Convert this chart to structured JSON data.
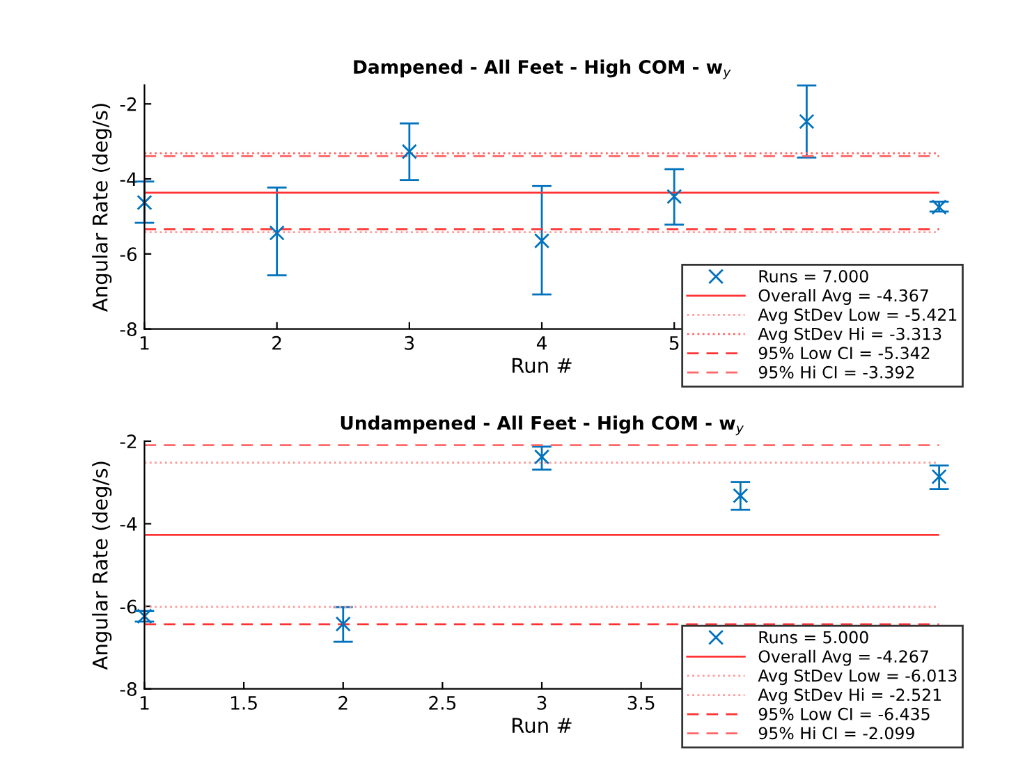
{
  "chart_data": [
    {
      "type": "scatter",
      "title": "Dampened - All Feet - High COM - w$_{y}$",
      "xlabel": "Run #",
      "ylabel": "Angular Rate (deg/s)",
      "x": [
        1,
        2,
        3,
        4,
        5,
        6,
        7
      ],
      "series": [
        {
          "name": "Runs = 7.000",
          "color": "#0072bd",
          "values": [
            -4.63,
            -5.44,
            -3.27,
            -5.65,
            -4.47,
            -2.47,
            -4.75
          ],
          "errors": [
            [
              -5.17,
              -4.07
            ],
            [
              -6.57,
              -4.23
            ],
            [
              -4.03,
              -2.52
            ],
            [
              -7.08,
              -4.19
            ],
            [
              -5.22,
              -3.74
            ],
            [
              -3.43,
              -1.51
            ],
            [
              -4.87,
              -4.61
            ]
          ]
        }
      ],
      "marker": "cross",
      "ref_lines": [
        {
          "axis": "y",
          "value": -4.367,
          "label": "Overall Avg = -4.367",
          "color": "#ff3333",
          "line_style": "solid"
        },
        {
          "axis": "y",
          "value": -5.421,
          "label": "Avg StDev Low = -5.421",
          "color": "#ff9999",
          "line_style": "dotted"
        },
        {
          "axis": "y",
          "value": -3.313,
          "label": "Avg StDev Hi = -3.313",
          "color": "#ff6666",
          "line_style": "dotted"
        },
        {
          "axis": "y",
          "value": -5.342,
          "label": "95% Low CI = -5.342",
          "color": "#ff3333",
          "line_style": "dashed"
        },
        {
          "axis": "y",
          "value": -3.392,
          "label": "95% Hi CI = -3.392",
          "color": "#ff6666",
          "line_style": "dashed"
        }
      ],
      "xlim": [
        1,
        7
      ],
      "xticks": [
        1,
        2,
        3,
        4,
        5
      ],
      "ylim": [
        -8,
        -1.5
      ],
      "yticks": [
        -8,
        -6,
        -4,
        -2
      ],
      "grid": false,
      "legend": "bottom right"
    },
    {
      "type": "scatter",
      "title": "Undampened - All Feet - High COM - w$_{y}$",
      "xlabel": "Run #",
      "ylabel": "Angular Rate (deg/s)",
      "x": [
        1,
        2,
        3,
        4,
        5
      ],
      "series": [
        {
          "name": "Runs = 5.000",
          "color": "#0072bd",
          "values": [
            -6.24,
            -6.43,
            -2.38,
            -3.32,
            -2.86
          ],
          "errors": [
            [
              -6.37,
              -6.11
            ],
            [
              -6.86,
              -6.02
            ],
            [
              -2.69,
              -2.13
            ],
            [
              -3.66,
              -2.99
            ],
            [
              -3.16,
              -2.59
            ]
          ]
        }
      ],
      "marker": "cross",
      "ref_lines": [
        {
          "axis": "y",
          "value": -4.267,
          "label": "Overall Avg = -4.267",
          "color": "#ff3333",
          "line_style": "solid"
        },
        {
          "axis": "y",
          "value": -6.013,
          "label": "Avg StDev Low = -6.013",
          "color": "#ff9999",
          "line_style": "dotted"
        },
        {
          "axis": "y",
          "value": -2.521,
          "label": "Avg StDev Hi = -2.521",
          "color": "#ff9999",
          "line_style": "dotted"
        },
        {
          "axis": "y",
          "value": -6.435,
          "label": "95% Low CI = -6.435",
          "color": "#ff3333",
          "line_style": "dashed"
        },
        {
          "axis": "y",
          "value": -2.099,
          "label": "95% Hi CI = -2.099",
          "color": "#ff6666",
          "line_style": "dashed"
        }
      ],
      "xlim": [
        1,
        5
      ],
      "xticks": [
        1,
        1.5,
        2,
        2.5,
        3,
        3.5
      ],
      "ylim": [
        -8,
        -2
      ],
      "yticks": [
        -8,
        -6,
        -4,
        -2
      ],
      "grid": false,
      "legend": "bottom right"
    }
  ]
}
